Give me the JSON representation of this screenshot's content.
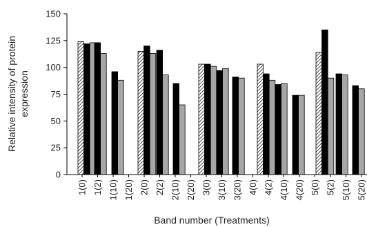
{
  "chart_data": {
    "type": "bar",
    "title": "",
    "xlabel": "Band number  (Treatments)",
    "ylabel_lines": [
      "Relative intensity of protein",
      "expression"
    ],
    "ylim": [
      0,
      150
    ],
    "yticks": [
      0,
      25,
      50,
      75,
      100,
      125,
      150
    ],
    "grid": false,
    "legend": "none",
    "categories": [
      "1(0)",
      "1(2)",
      "1(10)",
      "1(20)",
      "2(0)",
      "2(2)",
      "2(10)",
      "2(20)",
      "3(0)",
      "3(10)",
      "3(20)",
      "4(0)",
      "4(2)",
      "4(10)",
      "4(20)",
      "5(0)",
      "5(2)",
      "5(10)",
      "5(20)"
    ],
    "groups": [
      {
        "values": [
          124,
          122,
          123
        ],
        "fills": [
          "hatch",
          "black",
          "gray"
        ]
      },
      {
        "values": [
          123,
          113
        ],
        "fills": [
          "black",
          "gray"
        ]
      },
      {
        "values": [
          96,
          88
        ],
        "fills": [
          "black",
          "gray"
        ]
      },
      {
        "values": [
          115,
          120,
          113
        ],
        "fills": [
          "hatch",
          "black",
          "gray"
        ]
      },
      {
        "values": [
          116,
          93
        ],
        "fills": [
          "black",
          "gray"
        ]
      },
      {
        "values": [
          85,
          65
        ],
        "fills": [
          "black",
          "gray"
        ]
      },
      {
        "values": [
          103,
          103,
          101
        ],
        "fills": [
          "hatch",
          "black",
          "gray"
        ]
      },
      {
        "values": [
          97,
          99
        ],
        "fills": [
          "black",
          "gray"
        ]
      },
      {
        "values": [
          91,
          90
        ],
        "fills": [
          "black",
          "gray"
        ]
      },
      {
        "values": [
          103,
          94,
          88
        ],
        "fills": [
          "hatch",
          "black",
          "gray"
        ]
      },
      {
        "values": [
          84,
          85
        ],
        "fills": [
          "black",
          "gray"
        ]
      },
      {
        "values": [
          74,
          74
        ],
        "fills": [
          "black",
          "gray"
        ]
      },
      {
        "values": [
          114,
          135,
          90
        ],
        "fills": [
          "hatch",
          "black",
          "gray"
        ]
      },
      {
        "values": [
          94,
          93
        ],
        "fills": [
          "black",
          "gray"
        ]
      },
      {
        "values": [
          83,
          80
        ],
        "fills": [
          "black",
          "gray"
        ]
      }
    ],
    "colors": {
      "black": "#000000",
      "gray": "#a6a6a6",
      "hatch_line": "#000000",
      "hatch_bg": "#ffffff",
      "axis": "#000000"
    }
  }
}
